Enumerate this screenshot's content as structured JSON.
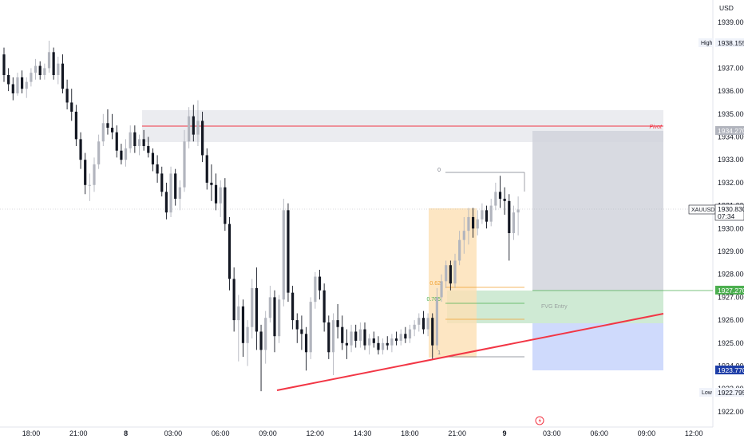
{
  "currency_label": "USD",
  "price_ticks": [
    "1939.000",
    "1937.000",
    "1936.000",
    "1935.000",
    "1934.000",
    "1933.000",
    "1932.000",
    "1931.000",
    "1930.000",
    "1929.000",
    "1928.000",
    "1927.000",
    "1926.000",
    "1925.000",
    "1924.000",
    "1923.000",
    "1922.000"
  ],
  "time_ticks": [
    "18:00",
    "21:00",
    "8",
    "03:00",
    "06:00",
    "09:00",
    "12:00",
    "14:30",
    "18:00",
    "21:00",
    "9",
    "03:00",
    "06:00",
    "09:00",
    "12:00"
  ],
  "badges": {
    "high_label": "High",
    "high_value": "1938.155",
    "pivot_value": "1934.270",
    "symbol": "XAUUSD",
    "price": "1930.830",
    "countdown": "07:34",
    "entry_value": "1927.270",
    "stop_value": "1923.770",
    "low_label": "Low",
    "low_value": "1922.795"
  },
  "annotations": {
    "pivot_label": "Pivot",
    "fvg_label": "FVG Entry",
    "fib_levels": [
      "0",
      "0.62",
      "0.705",
      "1"
    ]
  },
  "colors": {
    "bull": "#b2b5be",
    "bear": "#131722",
    "pivot_line": "#f23645",
    "trendline": "#f23645",
    "entry": "#4caf50",
    "stop": "#1e3ea8",
    "fib_orange": "#f0a030",
    "fib_green": "#4caf50"
  },
  "chart_data": {
    "type": "candlestick",
    "symbol": "XAUUSD",
    "ylim": [
      1921.5,
      1939.8
    ],
    "x_labels": [
      "18:00",
      "21:00",
      "8",
      "03:00",
      "06:00",
      "09:00",
      "12:00",
      "14:30",
      "18:00",
      "21:00",
      "9",
      "03:00",
      "06:00",
      "09:00",
      "12:00"
    ],
    "levels": {
      "high": 1938.155,
      "pivot": 1934.27,
      "last": 1930.83,
      "entry": 1927.27,
      "stop": 1923.77,
      "low": 1922.795
    },
    "candles": [
      [
        1937.6,
        1937.9,
        1936.4,
        1936.7
      ],
      [
        1936.7,
        1937.0,
        1936.0,
        1936.3
      ],
      [
        1936.3,
        1936.6,
        1935.6,
        1935.9
      ],
      [
        1935.9,
        1936.8,
        1935.8,
        1936.6
      ],
      [
        1936.6,
        1936.9,
        1935.9,
        1936.1
      ],
      [
        1936.1,
        1936.6,
        1935.7,
        1936.4
      ],
      [
        1936.4,
        1937.0,
        1936.2,
        1936.8
      ],
      [
        1936.8,
        1937.4,
        1936.5,
        1937.1
      ],
      [
        1937.1,
        1937.3,
        1936.5,
        1936.7
      ],
      [
        1936.7,
        1937.2,
        1936.5,
        1937.0
      ],
      [
        1937.0,
        1938.2,
        1936.8,
        1937.7
      ],
      [
        1937.7,
        1937.9,
        1936.5,
        1936.7
      ],
      [
        1936.7,
        1937.5,
        1936.3,
        1937.2
      ],
      [
        1937.2,
        1937.6,
        1935.9,
        1936.1
      ],
      [
        1936.1,
        1936.5,
        1935.2,
        1935.5
      ],
      [
        1935.5,
        1936.1,
        1934.7,
        1935.1
      ],
      [
        1935.1,
        1935.4,
        1933.6,
        1933.9
      ],
      [
        1933.9,
        1934.2,
        1932.6,
        1933.0
      ],
      [
        1933.0,
        1933.3,
        1931.5,
        1931.9
      ],
      [
        1931.9,
        1932.4,
        1931.2,
        1931.9
      ],
      [
        1931.9,
        1933.1,
        1931.6,
        1932.8
      ],
      [
        1932.8,
        1934.1,
        1932.6,
        1933.8
      ],
      [
        1933.8,
        1935.0,
        1933.6,
        1934.6
      ],
      [
        1934.6,
        1935.2,
        1934.1,
        1934.4
      ],
      [
        1934.4,
        1935.0,
        1933.9,
        1934.2
      ],
      [
        1934.2,
        1934.5,
        1933.1,
        1933.4
      ],
      [
        1933.4,
        1933.7,
        1932.8,
        1933.0
      ],
      [
        1933.0,
        1933.9,
        1932.7,
        1933.5
      ],
      [
        1933.5,
        1934.5,
        1933.3,
        1934.2
      ],
      [
        1934.2,
        1934.5,
        1933.3,
        1933.6
      ],
      [
        1933.6,
        1934.1,
        1933.2,
        1933.9
      ],
      [
        1933.9,
        1934.3,
        1933.4,
        1933.6
      ],
      [
        1933.6,
        1934.0,
        1933.1,
        1933.3
      ],
      [
        1933.3,
        1933.5,
        1932.5,
        1932.8
      ],
      [
        1932.8,
        1933.2,
        1932.0,
        1932.4
      ],
      [
        1932.4,
        1932.7,
        1931.4,
        1931.6
      ],
      [
        1931.6,
        1932.0,
        1930.4,
        1930.7
      ],
      [
        1930.7,
        1932.7,
        1930.5,
        1932.4
      ],
      [
        1932.4,
        1932.6,
        1931.0,
        1931.3
      ],
      [
        1931.3,
        1932.1,
        1930.8,
        1931.8
      ],
      [
        1931.8,
        1934.3,
        1931.6,
        1933.8
      ],
      [
        1933.8,
        1935.3,
        1933.5,
        1934.9
      ],
      [
        1934.9,
        1935.4,
        1933.8,
        1934.1
      ],
      [
        1934.1,
        1935.6,
        1933.6,
        1934.7
      ],
      [
        1934.7,
        1935.1,
        1932.9,
        1933.2
      ],
      [
        1933.2,
        1933.5,
        1931.7,
        1932.0
      ],
      [
        1932.0,
        1932.8,
        1931.2,
        1931.9
      ],
      [
        1931.9,
        1932.4,
        1930.8,
        1931.1
      ],
      [
        1931.1,
        1932.1,
        1930.5,
        1931.8
      ],
      [
        1931.8,
        1932.2,
        1929.9,
        1930.2
      ],
      [
        1930.2,
        1930.5,
        1927.3,
        1927.8
      ],
      [
        1927.8,
        1928.3,
        1925.5,
        1926.0
      ],
      [
        1926.0,
        1927.1,
        1924.2,
        1926.6
      ],
      [
        1926.6,
        1926.9,
        1924.4,
        1925.0
      ],
      [
        1925.0,
        1926.0,
        1924.0,
        1925.7
      ],
      [
        1925.7,
        1927.8,
        1925.2,
        1927.4
      ],
      [
        1927.4,
        1928.3,
        1924.7,
        1925.5
      ],
      [
        1925.5,
        1925.8,
        1922.9,
        1924.7
      ],
      [
        1924.7,
        1926.4,
        1924.1,
        1926.1
      ],
      [
        1926.1,
        1927.5,
        1925.9,
        1927.0
      ],
      [
        1927.0,
        1927.3,
        1924.6,
        1925.3
      ],
      [
        1925.3,
        1927.1,
        1925.0,
        1926.9
      ],
      [
        1926.9,
        1931.3,
        1926.6,
        1930.8
      ],
      [
        1930.8,
        1931.1,
        1926.8,
        1927.2
      ],
      [
        1927.2,
        1927.5,
        1925.6,
        1926.0
      ],
      [
        1926.0,
        1926.3,
        1925.0,
        1925.6
      ],
      [
        1925.6,
        1926.2,
        1924.7,
        1925.4
      ],
      [
        1925.4,
        1925.7,
        1923.8,
        1924.6
      ],
      [
        1924.6,
        1927.0,
        1924.3,
        1926.8
      ],
      [
        1926.8,
        1928.1,
        1926.5,
        1927.9
      ],
      [
        1927.9,
        1928.2,
        1926.9,
        1927.3
      ],
      [
        1927.3,
        1927.6,
        1925.5,
        1925.9
      ],
      [
        1925.9,
        1926.2,
        1924.3,
        1924.6
      ],
      [
        1924.6,
        1926.3,
        1923.6,
        1926.0
      ],
      [
        1926.0,
        1926.7,
        1925.2,
        1925.7
      ],
      [
        1925.7,
        1926.2,
        1924.7,
        1925.0
      ],
      [
        1925.0,
        1925.6,
        1924.3,
        1924.9
      ],
      [
        1924.9,
        1925.8,
        1924.6,
        1925.5
      ],
      [
        1925.5,
        1925.8,
        1924.8,
        1925.1
      ],
      [
        1925.1,
        1925.9,
        1924.8,
        1925.6
      ],
      [
        1925.6,
        1925.9,
        1924.7,
        1924.9
      ],
      [
        1924.9,
        1925.4,
        1924.5,
        1925.2
      ],
      [
        1925.2,
        1925.5,
        1924.8,
        1925.0
      ],
      [
        1925.0,
        1925.3,
        1924.5,
        1924.7
      ],
      [
        1924.7,
        1925.2,
        1924.5,
        1925.0
      ],
      [
        1925.0,
        1925.3,
        1924.7,
        1924.9
      ],
      [
        1924.9,
        1925.4,
        1924.6,
        1925.2
      ],
      [
        1925.2,
        1925.5,
        1924.9,
        1925.1
      ],
      [
        1925.1,
        1925.6,
        1924.9,
        1925.4
      ],
      [
        1925.4,
        1925.7,
        1925.0,
        1925.2
      ],
      [
        1925.2,
        1925.8,
        1925.0,
        1925.6
      ],
      [
        1925.6,
        1926.0,
        1925.3,
        1925.8
      ],
      [
        1925.8,
        1926.3,
        1925.5,
        1926.1
      ],
      [
        1926.1,
        1926.4,
        1925.4,
        1925.6
      ],
      [
        1925.6,
        1926.3,
        1925.3,
        1926.1
      ],
      [
        1926.1,
        1926.3,
        1924.3,
        1924.9
      ],
      [
        1924.9,
        1927.4,
        1924.7,
        1927.0
      ],
      [
        1927.0,
        1928.0,
        1926.8,
        1927.7
      ],
      [
        1927.7,
        1928.6,
        1927.4,
        1928.4
      ],
      [
        1928.4,
        1928.6,
        1927.3,
        1927.6
      ],
      [
        1927.6,
        1928.9,
        1927.4,
        1928.6
      ],
      [
        1928.6,
        1929.9,
        1928.4,
        1929.5
      ],
      [
        1929.5,
        1930.5,
        1928.9,
        1929.9
      ],
      [
        1929.9,
        1930.9,
        1929.3,
        1930.5
      ],
      [
        1930.5,
        1930.9,
        1929.6,
        1930.0
      ],
      [
        1930.0,
        1930.8,
        1929.7,
        1930.4
      ],
      [
        1930.4,
        1931.1,
        1930.2,
        1930.8
      ],
      [
        1930.8,
        1931.0,
        1930.0,
        1930.3
      ],
      [
        1930.3,
        1931.3,
        1930.1,
        1931.0
      ],
      [
        1931.0,
        1932.0,
        1930.8,
        1931.6
      ],
      [
        1931.6,
        1932.3,
        1930.9,
        1931.3
      ],
      [
        1931.3,
        1931.8,
        1930.6,
        1931.2
      ],
      [
        1931.2,
        1931.5,
        1928.6,
        1929.8
      ],
      [
        1929.8,
        1931.0,
        1929.5,
        1930.7
      ],
      [
        1930.7,
        1931.4,
        1929.7,
        1930.83
      ]
    ]
  }
}
